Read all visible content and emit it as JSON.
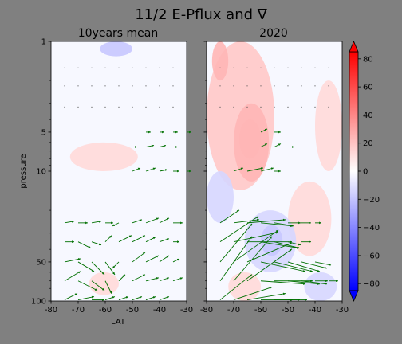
{
  "chart_data": {
    "type": "contour+quiver",
    "title": "11/2 E-Pflux and ∇",
    "ylabel": "pressure",
    "xlabel": "LAT",
    "x_ticks": [
      -80,
      -70,
      -60,
      -50,
      -40,
      -30
    ],
    "xlim": [
      -80,
      -30
    ],
    "y_ticks": [
      1,
      5,
      10,
      50,
      100
    ],
    "ylim": [
      100,
      1
    ],
    "y_scale": "log",
    "colormap": "bwr",
    "colorbar": {
      "ticks": [
        80,
        60,
        40,
        20,
        0,
        -20,
        -40,
        -60,
        -80
      ],
      "range": [
        -85,
        85
      ],
      "extend": "both",
      "low_color": "#0000ff",
      "high_color": "#ff0000"
    },
    "panels": [
      {
        "subtitle": "10years mean",
        "contours": [
          {
            "type": "pos",
            "lat": [
              -73,
              -48
            ],
            "p": [
              6,
              10
            ],
            "level": 2
          },
          {
            "type": "neg",
            "lat": [
              -62,
              -50
            ],
            "p": [
              1,
              1.3
            ],
            "level": 3
          },
          {
            "type": "pos",
            "lat": [
              -66,
              -55
            ],
            "p": [
              60,
              90
            ],
            "level": 2
          }
        ],
        "arrows": [
          {
            "lat": -45,
            "p": 5.0,
            "u": 1.5,
            "v": 0
          },
          {
            "lat": -40,
            "p": 5.0,
            "u": 1.5,
            "v": 0
          },
          {
            "lat": -35,
            "p": 5.0,
            "u": 1.5,
            "v": 0
          },
          {
            "lat": -30,
            "p": 5.0,
            "u": 1.5,
            "v": 0
          },
          {
            "lat": -50,
            "p": 6.5,
            "u": 1.5,
            "v": 0
          },
          {
            "lat": -45,
            "p": 6.5,
            "u": 2.5,
            "v": 0.5
          },
          {
            "lat": -40,
            "p": 6.5,
            "u": 2,
            "v": 0.5
          },
          {
            "lat": -35,
            "p": 6.5,
            "u": 1.5,
            "v": 0
          },
          {
            "lat": -50,
            "p": 10,
            "u": 2.5,
            "v": 1
          },
          {
            "lat": -45,
            "p": 10,
            "u": 3,
            "v": 1
          },
          {
            "lat": -40,
            "p": 10,
            "u": 2.5,
            "v": 0.5
          },
          {
            "lat": -35,
            "p": 10,
            "u": 2,
            "v": 0
          },
          {
            "lat": -30,
            "p": 10,
            "u": 1.5,
            "v": 0
          },
          {
            "lat": -75,
            "p": 25,
            "u": 3,
            "v": 0.5
          },
          {
            "lat": -70,
            "p": 25,
            "u": 3,
            "v": 0
          },
          {
            "lat": -65,
            "p": 25,
            "u": 3,
            "v": 0.5
          },
          {
            "lat": -60,
            "p": 25,
            "u": 2.5,
            "v": 0
          },
          {
            "lat": -55,
            "p": 25,
            "u": -2,
            "v": -1
          },
          {
            "lat": -50,
            "p": 25,
            "u": 3,
            "v": 1
          },
          {
            "lat": -45,
            "p": 25,
            "u": 4,
            "v": 1.5
          },
          {
            "lat": -40,
            "p": 25,
            "u": 3,
            "v": 1.5
          },
          {
            "lat": -35,
            "p": 25,
            "u": 3,
            "v": 0
          },
          {
            "lat": -75,
            "p": 35,
            "u": 3,
            "v": 0
          },
          {
            "lat": -70,
            "p": 35,
            "u": 4,
            "v": -2
          },
          {
            "lat": -65,
            "p": 35,
            "u": 3,
            "v": -1
          },
          {
            "lat": -60,
            "p": 35,
            "u": 2,
            "v": 2
          },
          {
            "lat": -55,
            "p": 35,
            "u": 4,
            "v": 2
          },
          {
            "lat": -50,
            "p": 35,
            "u": 4,
            "v": 2
          },
          {
            "lat": -45,
            "p": 35,
            "u": 3,
            "v": 1.5
          },
          {
            "lat": -40,
            "p": 35,
            "u": 3,
            "v": 1
          },
          {
            "lat": -35,
            "p": 35,
            "u": 2,
            "v": 0
          },
          {
            "lat": -75,
            "p": 50,
            "u": 5,
            "v": 1
          },
          {
            "lat": -70,
            "p": 50,
            "u": 5,
            "v": -3
          },
          {
            "lat": -65,
            "p": 50,
            "u": 4,
            "v": -4
          },
          {
            "lat": -60,
            "p": 50,
            "u": 3,
            "v": -4
          },
          {
            "lat": -55,
            "p": 50,
            "u": -2,
            "v": -2
          },
          {
            "lat": -50,
            "p": 50,
            "u": 4,
            "v": 3
          },
          {
            "lat": -45,
            "p": 50,
            "u": 4,
            "v": 2
          },
          {
            "lat": -40,
            "p": 50,
            "u": 3,
            "v": 2
          },
          {
            "lat": -35,
            "p": 50,
            "u": 2,
            "v": 1
          },
          {
            "lat": -75,
            "p": 70,
            "u": 5,
            "v": 3
          },
          {
            "lat": -70,
            "p": 70,
            "u": 6,
            "v": -3
          },
          {
            "lat": -65,
            "p": 70,
            "u": 4,
            "v": -3
          },
          {
            "lat": -60,
            "p": 70,
            "u": 2,
            "v": -4
          },
          {
            "lat": -55,
            "p": 70,
            "u": 2,
            "v": 2
          },
          {
            "lat": -50,
            "p": 70,
            "u": 4,
            "v": 2
          },
          {
            "lat": -45,
            "p": 70,
            "u": 4,
            "v": 1
          },
          {
            "lat": -40,
            "p": 70,
            "u": 3,
            "v": 1
          },
          {
            "lat": -35,
            "p": 70,
            "u": 3,
            "v": 1
          },
          {
            "lat": -75,
            "p": 98,
            "u": 4,
            "v": 2
          },
          {
            "lat": -70,
            "p": 98,
            "u": 5,
            "v": 1
          },
          {
            "lat": -65,
            "p": 98,
            "u": 4,
            "v": 0
          },
          {
            "lat": -60,
            "p": 98,
            "u": 3,
            "v": 1
          },
          {
            "lat": -55,
            "p": 98,
            "u": 3,
            "v": 1
          },
          {
            "lat": -50,
            "p": 98,
            "u": 3,
            "v": 1
          },
          {
            "lat": -45,
            "p": 98,
            "u": 3,
            "v": 1
          },
          {
            "lat": -40,
            "p": 98,
            "u": 3,
            "v": 1
          }
        ]
      },
      {
        "subtitle": "2020",
        "contours": [
          {
            "type": "pos",
            "lat": [
              -80,
              -55
            ],
            "p": [
              1,
              14
            ],
            "level": 3
          },
          {
            "type": "pos",
            "lat": [
              -70,
              -57
            ],
            "p": [
              3,
              12
            ],
            "level": 4
          },
          {
            "type": "pos",
            "lat": [
              -68,
              -60
            ],
            "p": [
              4,
              8
            ],
            "level": 5
          },
          {
            "type": "pos",
            "lat": [
              -78,
              -72
            ],
            "p": [
              1,
              2
            ],
            "level": 4
          },
          {
            "type": "pos",
            "lat": [
              -40,
              -30
            ],
            "p": [
              2,
              10
            ],
            "level": 2
          },
          {
            "type": "pos",
            "lat": [
              -50,
              -34
            ],
            "p": [
              12,
              45
            ],
            "level": 2
          },
          {
            "type": "neg",
            "lat": [
              -66,
              -47
            ],
            "p": [
              20,
              60
            ],
            "level": 2
          },
          {
            "type": "neg",
            "lat": [
              -60,
              -52
            ],
            "p": [
              26,
              45
            ],
            "level": 3
          },
          {
            "type": "neg",
            "lat": [
              -80,
              -70
            ],
            "p": [
              10,
              25
            ],
            "level": 2
          },
          {
            "type": "neg",
            "lat": [
              -44,
              -32
            ],
            "p": [
              60,
              100
            ],
            "level": 2
          },
          {
            "type": "pos",
            "lat": [
              -72,
              -60
            ],
            "p": [
              60,
              100
            ],
            "level": 2
          }
        ],
        "arrows": [
          {
            "lat": -60,
            "p": 5.0,
            "u": 2,
            "v": 1
          },
          {
            "lat": -55,
            "p": 5.0,
            "u": 2,
            "v": 0
          },
          {
            "lat": -60,
            "p": 6.5,
            "u": 2,
            "v": 1
          },
          {
            "lat": -55,
            "p": 6.5,
            "u": 2,
            "v": 1
          },
          {
            "lat": -50,
            "p": 6.5,
            "u": 2,
            "v": 0
          },
          {
            "lat": -70,
            "p": 10,
            "u": 3,
            "v": 1
          },
          {
            "lat": -65,
            "p": 10,
            "u": 5,
            "v": 1
          },
          {
            "lat": -60,
            "p": 10,
            "u": 4,
            "v": 1
          },
          {
            "lat": -55,
            "p": 10,
            "u": 2,
            "v": 0
          },
          {
            "lat": -75,
            "p": 25,
            "u": 6,
            "v": 4
          },
          {
            "lat": -70,
            "p": 25,
            "u": 8,
            "v": 1
          },
          {
            "lat": -65,
            "p": 25,
            "u": 12,
            "v": 1
          },
          {
            "lat": -60,
            "p": 25,
            "u": 10,
            "v": -1
          },
          {
            "lat": -55,
            "p": 25,
            "u": 6,
            "v": -1
          },
          {
            "lat": -50,
            "p": 25,
            "u": 4,
            "v": 0
          },
          {
            "lat": -45,
            "p": 25,
            "u": 3,
            "v": 0
          },
          {
            "lat": -40,
            "p": 25,
            "u": 2,
            "v": 0
          },
          {
            "lat": -75,
            "p": 35,
            "u": 12,
            "v": 8
          },
          {
            "lat": -70,
            "p": 35,
            "u": 14,
            "v": 3
          },
          {
            "lat": -65,
            "p": 35,
            "u": 14,
            "v": 0
          },
          {
            "lat": -60,
            "p": 35,
            "u": 12,
            "v": -2
          },
          {
            "lat": -55,
            "p": 35,
            "u": 8,
            "v": -2
          },
          {
            "lat": -50,
            "p": 35,
            "u": 4,
            "v": -1
          },
          {
            "lat": -45,
            "p": 35,
            "u": 3,
            "v": 0
          },
          {
            "lat": -75,
            "p": 50,
            "u": 10,
            "v": 12
          },
          {
            "lat": -70,
            "p": 50,
            "u": 14,
            "v": 10
          },
          {
            "lat": -65,
            "p": 50,
            "u": 14,
            "v": 6
          },
          {
            "lat": -60,
            "p": 50,
            "u": 14,
            "v": -3
          },
          {
            "lat": -55,
            "p": 50,
            "u": 12,
            "v": -3
          },
          {
            "lat": -50,
            "p": 50,
            "u": 10,
            "v": -3
          },
          {
            "lat": -45,
            "p": 50,
            "u": 8,
            "v": -2
          },
          {
            "lat": -40,
            "p": 50,
            "u": 5,
            "v": -1
          },
          {
            "lat": -75,
            "p": 70,
            "u": 10,
            "v": 14
          },
          {
            "lat": -70,
            "p": 70,
            "u": 12,
            "v": 14
          },
          {
            "lat": -65,
            "p": 70,
            "u": 14,
            "v": 10
          },
          {
            "lat": -60,
            "p": 70,
            "u": 14,
            "v": -1
          },
          {
            "lat": -55,
            "p": 70,
            "u": 12,
            "v": 0
          },
          {
            "lat": -50,
            "p": 70,
            "u": 10,
            "v": -1
          },
          {
            "lat": -45,
            "p": 70,
            "u": 8,
            "v": -1
          },
          {
            "lat": -40,
            "p": 70,
            "u": 4,
            "v": 0
          },
          {
            "lat": -35,
            "p": 70,
            "u": 3,
            "v": 0
          },
          {
            "lat": -75,
            "p": 98,
            "u": 10,
            "v": 8
          },
          {
            "lat": -70,
            "p": 98,
            "u": 12,
            "v": 4
          },
          {
            "lat": -65,
            "p": 98,
            "u": 12,
            "v": 2
          },
          {
            "lat": -60,
            "p": 98,
            "u": 10,
            "v": 0
          },
          {
            "lat": -55,
            "p": 98,
            "u": 8,
            "v": 0
          },
          {
            "lat": -50,
            "p": 98,
            "u": 6,
            "v": 0
          }
        ]
      }
    ]
  }
}
